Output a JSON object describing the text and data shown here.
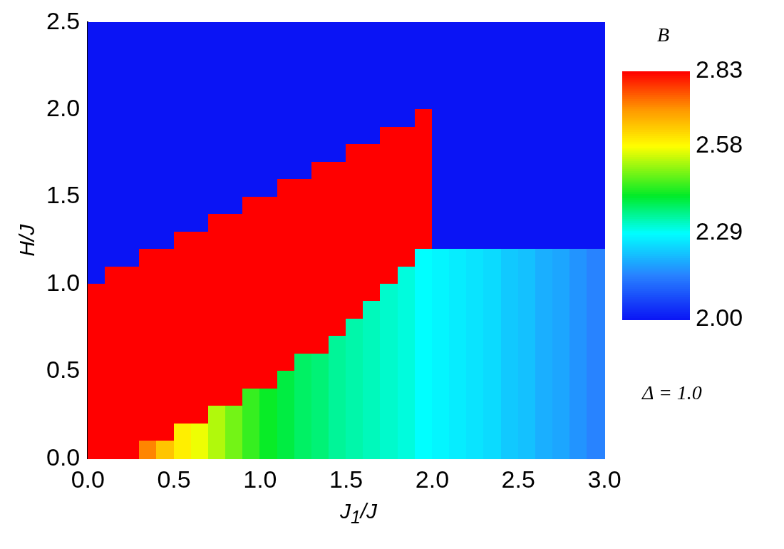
{
  "chart_data": {
    "type": "heatmap",
    "xlabel": "J$_{1}$/J",
    "ylabel": "H/J",
    "clabel": "B",
    "annotations": [
      "Δ = 1.0"
    ],
    "xlim": [
      0,
      3
    ],
    "xticks": [
      {
        "value": 0,
        "label": "0.0"
      },
      {
        "value": 0.5,
        "label": "0.5"
      },
      {
        "value": 1,
        "label": "1.0"
      },
      {
        "value": 1.5,
        "label": "1.5"
      },
      {
        "value": 2,
        "label": "2.0"
      },
      {
        "value": 2.5,
        "label": "2.5"
      },
      {
        "value": 3,
        "label": "3.0"
      }
    ],
    "ylim": [
      0,
      2.5
    ],
    "yticks": [
      {
        "value": 0,
        "label": "0.0"
      },
      {
        "value": 0.5,
        "label": "0.5"
      },
      {
        "value": 1,
        "label": "1.0"
      },
      {
        "value": 1.5,
        "label": "1.5"
      },
      {
        "value": 2,
        "label": "2.0"
      },
      {
        "value": 2.5,
        "label": "2.5"
      }
    ],
    "clim": [
      2.0,
      2.83
    ],
    "cticks": [
      {
        "value": 2.0,
        "label": "2.00"
      },
      2.29,
      2.58,
      2.83
    ],
    "cells": [
      [
        2,
        2,
        2,
        2,
        2,
        2,
        2,
        2,
        2,
        2,
        2,
        2,
        2,
        2,
        2,
        2,
        2,
        2,
        2,
        2,
        2,
        2,
        2,
        2,
        2,
        2,
        2,
        2,
        2,
        2
      ],
      [
        2,
        2,
        2,
        2,
        2,
        2,
        2,
        2,
        2,
        2,
        2,
        2,
        2,
        2,
        2,
        2,
        2,
        2,
        2,
        2,
        2,
        2,
        2,
        2,
        2,
        2,
        2,
        2,
        2,
        2
      ],
      [
        2,
        2,
        2,
        2,
        2,
        2,
        2,
        2,
        2,
        2,
        2,
        2,
        2,
        2,
        2,
        2,
        2,
        2,
        2,
        2,
        2,
        2,
        2,
        2,
        2,
        2,
        2,
        2,
        2,
        2
      ],
      [
        2,
        2,
        2,
        2,
        2,
        2,
        2,
        2,
        2,
        2,
        2,
        2,
        2,
        2,
        2,
        2,
        2,
        2,
        2,
        2,
        2,
        2,
        2,
        2,
        2,
        2,
        2,
        2,
        2,
        2
      ],
      [
        2,
        2,
        2,
        2,
        2,
        2,
        2,
        2,
        2,
        2,
        2,
        2,
        2,
        2,
        2,
        2,
        2,
        2,
        2,
        2,
        2,
        2,
        2,
        2,
        2,
        2,
        2,
        2,
        2,
        2
      ],
      [
        2,
        2,
        2,
        2,
        2,
        2,
        2,
        2,
        2,
        2,
        2,
        2,
        2,
        2,
        2,
        2,
        2,
        2,
        2,
        2.83,
        2,
        2,
        2,
        2,
        2,
        2,
        2,
        2,
        2,
        2
      ],
      [
        2,
        2,
        2,
        2,
        2,
        2,
        2,
        2,
        2,
        2,
        2,
        2,
        2,
        2,
        2,
        2,
        2,
        2.83,
        2.83,
        2.83,
        2,
        2,
        2,
        2,
        2,
        2,
        2,
        2,
        2,
        2
      ],
      [
        2,
        2,
        2,
        2,
        2,
        2,
        2,
        2,
        2,
        2,
        2,
        2,
        2,
        2,
        2,
        2.83,
        2.83,
        2.83,
        2.83,
        2.83,
        2,
        2,
        2,
        2,
        2,
        2,
        2,
        2,
        2,
        2
      ],
      [
        2,
        2,
        2,
        2,
        2,
        2,
        2,
        2,
        2,
        2,
        2,
        2,
        2,
        2.83,
        2.83,
        2.83,
        2.83,
        2.83,
        2.83,
        2.83,
        2,
        2,
        2,
        2,
        2,
        2,
        2,
        2,
        2,
        2
      ],
      [
        2,
        2,
        2,
        2,
        2,
        2,
        2,
        2,
        2,
        2,
        2,
        2.83,
        2.83,
        2.83,
        2.83,
        2.83,
        2.83,
        2.83,
        2.83,
        2.83,
        2,
        2,
        2,
        2,
        2,
        2,
        2,
        2,
        2,
        2
      ],
      [
        2,
        2,
        2,
        2,
        2,
        2,
        2,
        2,
        2,
        2.83,
        2.83,
        2.83,
        2.83,
        2.83,
        2.83,
        2.83,
        2.83,
        2.83,
        2.83,
        2.83,
        2,
        2,
        2,
        2,
        2,
        2,
        2,
        2,
        2,
        2
      ],
      [
        2,
        2,
        2,
        2,
        2,
        2,
        2,
        2.83,
        2.83,
        2.83,
        2.83,
        2.83,
        2.83,
        2.83,
        2.83,
        2.83,
        2.83,
        2.83,
        2.83,
        2.83,
        2,
        2,
        2,
        2,
        2,
        2,
        2,
        2,
        2,
        2
      ],
      [
        2,
        2,
        2,
        2,
        2,
        2.83,
        2.83,
        2.83,
        2.83,
        2.83,
        2.83,
        2.83,
        2.83,
        2.83,
        2.83,
        2.83,
        2.83,
        2.83,
        2.83,
        2.83,
        2,
        2,
        2,
        2,
        2,
        2,
        2,
        2,
        2,
        2
      ],
      [
        2,
        2,
        2,
        2.83,
        2.83,
        2.83,
        2.83,
        2.83,
        2.83,
        2.83,
        2.83,
        2.83,
        2.83,
        2.83,
        2.83,
        2.83,
        2.83,
        2.83,
        2.83,
        2.29,
        2.28,
        2.27,
        2.26,
        2.25,
        2.23,
        2.22,
        2.2,
        2.19,
        2.17,
        2.15
      ],
      [
        2,
        2.83,
        2.83,
        2.83,
        2.83,
        2.83,
        2.83,
        2.83,
        2.83,
        2.83,
        2.83,
        2.83,
        2.83,
        2.83,
        2.83,
        2.83,
        2.83,
        2.83,
        2.31,
        2.29,
        2.28,
        2.27,
        2.26,
        2.25,
        2.23,
        2.22,
        2.2,
        2.19,
        2.17,
        2.15
      ],
      [
        2.83,
        2.83,
        2.83,
        2.83,
        2.83,
        2.83,
        2.83,
        2.83,
        2.83,
        2.83,
        2.83,
        2.83,
        2.83,
        2.83,
        2.83,
        2.83,
        2.83,
        2.32,
        2.31,
        2.29,
        2.28,
        2.27,
        2.26,
        2.25,
        2.23,
        2.22,
        2.2,
        2.19,
        2.17,
        2.15
      ],
      [
        2.83,
        2.83,
        2.83,
        2.83,
        2.83,
        2.83,
        2.83,
        2.83,
        2.83,
        2.83,
        2.83,
        2.83,
        2.83,
        2.83,
        2.83,
        2.83,
        2.33,
        2.32,
        2.31,
        2.29,
        2.28,
        2.27,
        2.26,
        2.25,
        2.23,
        2.22,
        2.2,
        2.19,
        2.17,
        2.15
      ],
      [
        2.83,
        2.83,
        2.83,
        2.83,
        2.83,
        2.83,
        2.83,
        2.83,
        2.83,
        2.83,
        2.83,
        2.83,
        2.83,
        2.83,
        2.83,
        2.34,
        2.33,
        2.32,
        2.31,
        2.29,
        2.28,
        2.27,
        2.26,
        2.25,
        2.23,
        2.22,
        2.2,
        2.19,
        2.17,
        2.15
      ],
      [
        2.83,
        2.83,
        2.83,
        2.83,
        2.83,
        2.83,
        2.83,
        2.83,
        2.83,
        2.83,
        2.83,
        2.83,
        2.83,
        2.83,
        2.35,
        2.34,
        2.33,
        2.32,
        2.31,
        2.29,
        2.28,
        2.27,
        2.26,
        2.25,
        2.23,
        2.22,
        2.2,
        2.19,
        2.17,
        2.15
      ],
      [
        2.83,
        2.83,
        2.83,
        2.83,
        2.83,
        2.83,
        2.83,
        2.83,
        2.83,
        2.83,
        2.83,
        2.83,
        2.38,
        2.37,
        2.35,
        2.34,
        2.33,
        2.32,
        2.31,
        2.29,
        2.28,
        2.27,
        2.26,
        2.25,
        2.23,
        2.22,
        2.2,
        2.19,
        2.17,
        2.15
      ],
      [
        2.83,
        2.83,
        2.83,
        2.83,
        2.83,
        2.83,
        2.83,
        2.83,
        2.83,
        2.83,
        2.83,
        2.4,
        2.38,
        2.37,
        2.35,
        2.34,
        2.33,
        2.32,
        2.31,
        2.29,
        2.28,
        2.27,
        2.26,
        2.25,
        2.23,
        2.22,
        2.2,
        2.19,
        2.17,
        2.15
      ],
      [
        2.83,
        2.83,
        2.83,
        2.83,
        2.83,
        2.83,
        2.83,
        2.83,
        2.83,
        2.45,
        2.42,
        2.4,
        2.38,
        2.37,
        2.35,
        2.34,
        2.33,
        2.32,
        2.31,
        2.29,
        2.28,
        2.27,
        2.26,
        2.25,
        2.23,
        2.22,
        2.2,
        2.19,
        2.17,
        2.15
      ],
      [
        2.83,
        2.83,
        2.83,
        2.83,
        2.83,
        2.83,
        2.83,
        2.53,
        2.49,
        2.45,
        2.42,
        2.4,
        2.38,
        2.37,
        2.35,
        2.34,
        2.33,
        2.32,
        2.31,
        2.29,
        2.28,
        2.27,
        2.26,
        2.25,
        2.23,
        2.22,
        2.2,
        2.19,
        2.17,
        2.15
      ],
      [
        2.83,
        2.83,
        2.83,
        2.83,
        2.83,
        2.6,
        2.57,
        2.53,
        2.49,
        2.45,
        2.42,
        2.4,
        2.38,
        2.37,
        2.35,
        2.34,
        2.33,
        2.32,
        2.31,
        2.29,
        2.28,
        2.27,
        2.26,
        2.25,
        2.23,
        2.22,
        2.2,
        2.19,
        2.17,
        2.15
      ],
      [
        2.83,
        2.83,
        2.83,
        2.72,
        2.65,
        2.6,
        2.57,
        2.53,
        2.49,
        2.45,
        2.42,
        2.4,
        2.38,
        2.37,
        2.35,
        2.34,
        2.33,
        2.32,
        2.31,
        2.29,
        2.28,
        2.27,
        2.26,
        2.25,
        2.23,
        2.22,
        2.2,
        2.19,
        2.17,
        2.15
      ]
    ]
  }
}
